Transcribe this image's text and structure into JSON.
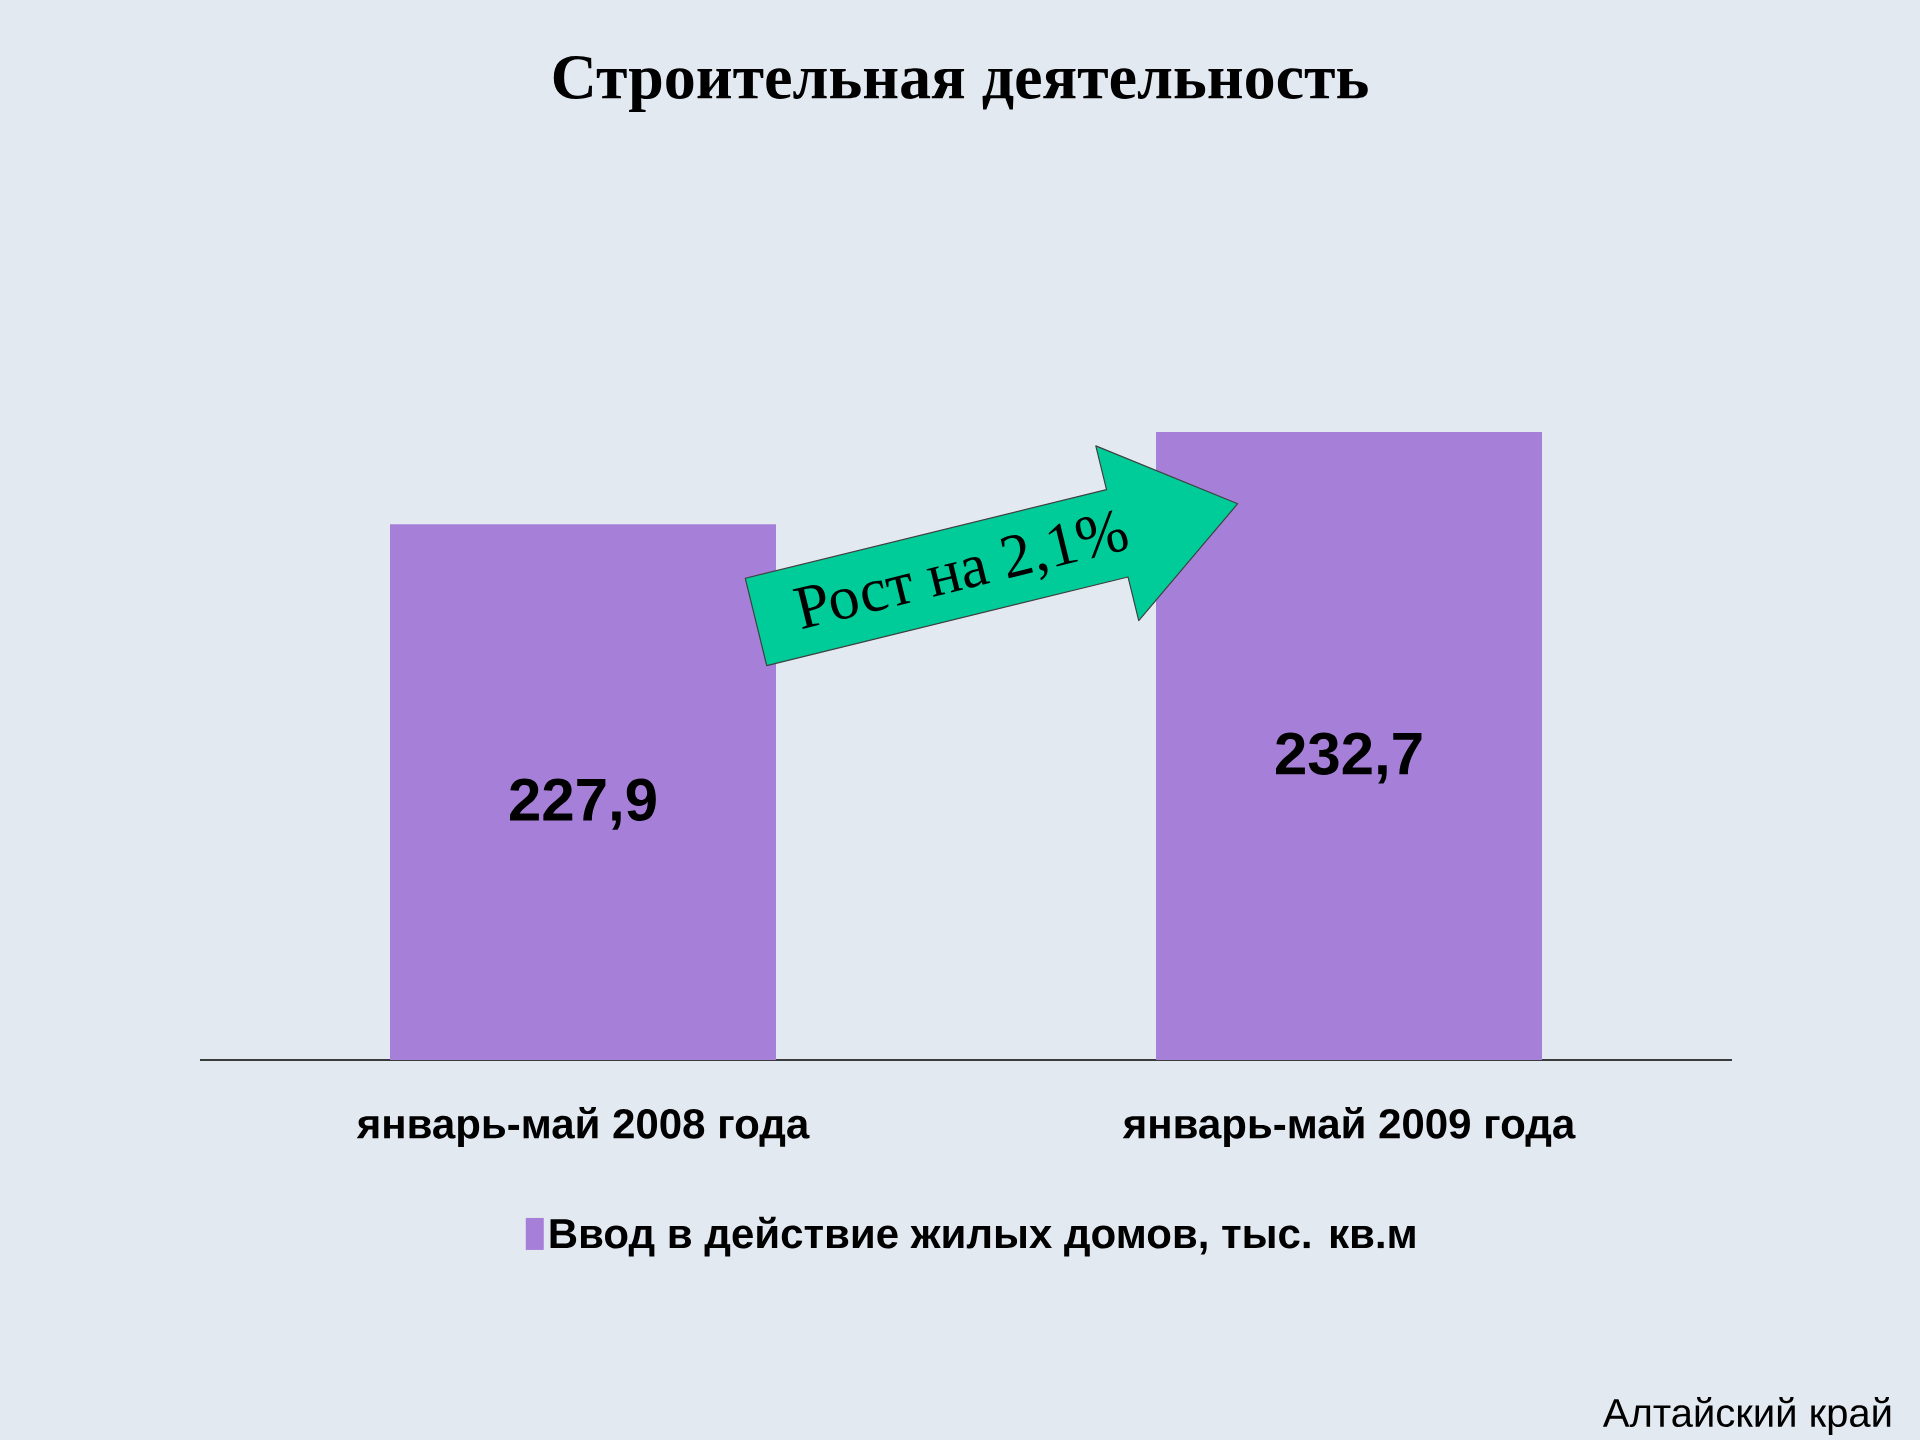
{
  "chart_data": {
    "type": "bar",
    "title": "Строительная деятельность",
    "categories": [
      "январь-май 2008 года",
      "январь-май 2009 года"
    ],
    "series": [
      {
        "name": "Ввод в действие жилых домов, тыс. кв.м",
        "color": "#a680d8",
        "values": [
          227.9,
          232.7
        ],
        "value_labels": [
          "227,9",
          "232,7"
        ]
      }
    ],
    "ylim": [
      200,
      232.7
    ],
    "legend": "bottom",
    "tick_labels": "x",
    "annotations": [
      "Рост на 2,1%",
      "Алтайский край"
    ]
  }
}
